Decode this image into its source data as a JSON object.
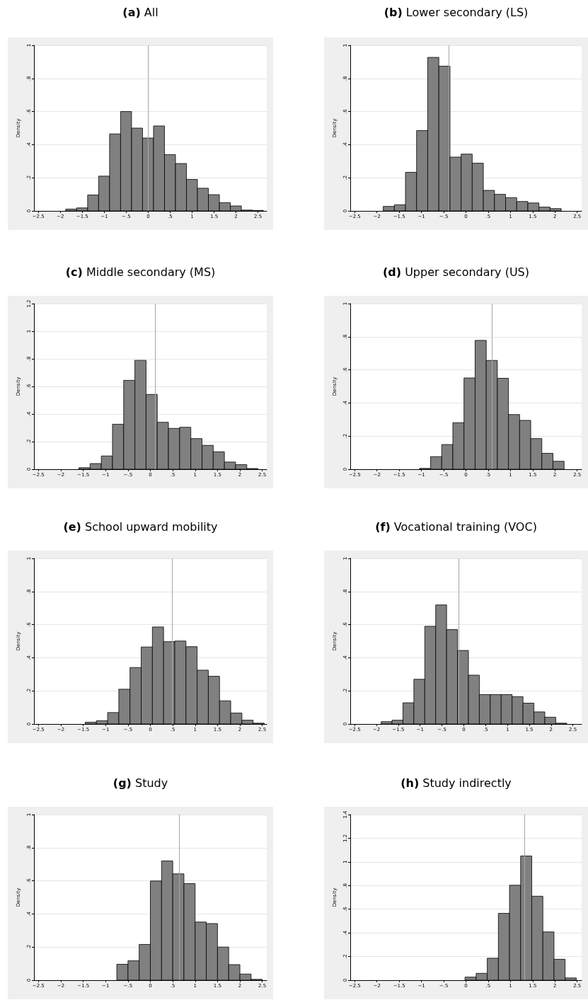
{
  "chart_data": [
    {
      "type": "histogram",
      "title": "(a) All",
      "ylabel": "Density",
      "color": "#808080",
      "grid": "y",
      "bins": [
        -1.878,
        -1.628,
        -1.378,
        -1.128,
        -0.878,
        -0.628,
        -0.378,
        -0.128,
        0.122,
        0.372,
        0.622,
        0.872,
        1.122,
        1.372,
        1.622,
        1.872,
        2.122,
        2.372,
        2.622
      ],
      "values": [
        0.011,
        0.018,
        0.096,
        0.21,
        0.465,
        0.6,
        0.5,
        0.44,
        0.513,
        0.34,
        0.286,
        0.19,
        0.137,
        0.098,
        0.05,
        0.03,
        0.005,
        0.003
      ],
      "ref_lines": [
        {
          "axis": "x",
          "value": 0,
          "color": "#a6a6a6"
        }
      ],
      "xlim": [
        -2.6,
        2.7
      ],
      "xticks": [
        {
          "value": -2.5,
          "label": "−2.5"
        },
        {
          "value": -2,
          "label": "−2"
        },
        {
          "value": -1.5,
          "label": "−1.5"
        },
        {
          "value": -1,
          "label": "−1"
        },
        {
          "value": -0.5,
          "label": "−.5"
        },
        0,
        {
          "value": 0.5,
          "label": ".5"
        },
        1,
        1.5,
        2,
        2.5
      ],
      "ylim": [
        0,
        1
      ],
      "yticks": [
        0,
        {
          "value": 0.2,
          "label": ".2"
        },
        {
          "value": 0.4,
          "label": ".4"
        },
        {
          "value": 0.6,
          "label": ".6"
        },
        {
          "value": 0.8,
          "label": ".8"
        },
        1
      ]
    },
    {
      "type": "histogram",
      "title": "(b) Lower secondary (LS)",
      "ylabel": "Density",
      "color": "#808080",
      "grid": "y",
      "bins": [
        -1.859,
        -1.609,
        -1.359,
        -1.109,
        -0.859,
        -0.609,
        -0.359,
        -0.109,
        0.141,
        0.391,
        0.641,
        0.891,
        1.141,
        1.391,
        1.641,
        1.891,
        2.141,
        2.391
      ],
      "values": [
        0.027,
        0.037,
        0.233,
        0.485,
        0.927,
        0.874,
        0.325,
        0.343,
        0.288,
        0.124,
        0.1,
        0.08,
        0.057,
        0.048,
        0.023,
        0.014,
        null
      ],
      "ref_lines": [
        {
          "axis": "x",
          "value": -0.378,
          "color": "#a6a6a6"
        }
      ],
      "xlim": [
        -2.6,
        2.6
      ],
      "xticks": [
        {
          "value": -2.5,
          "label": "−2.5"
        },
        {
          "value": -2,
          "label": "−2"
        },
        {
          "value": -1.5,
          "label": "−1.5"
        },
        {
          "value": -1,
          "label": "−1"
        },
        {
          "value": -0.5,
          "label": "−.5"
        },
        0,
        {
          "value": 0.5,
          "label": ".5"
        },
        1,
        1.5,
        2,
        2.5
      ],
      "ylim": [
        0,
        1
      ],
      "yticks": [
        0,
        {
          "value": 0.2,
          "label": ".2"
        },
        {
          "value": 0.4,
          "label": ".4"
        },
        {
          "value": 0.6,
          "label": ".6"
        },
        {
          "value": 0.8,
          "label": ".8"
        },
        1
      ]
    },
    {
      "type": "histogram",
      "title": "(c) Middle secondary (MS)",
      "ylabel": "Density",
      "color": "#808080",
      "grid": "y",
      "bins": [
        -1.596,
        -1.346,
        -1.096,
        -0.846,
        -0.596,
        -0.346,
        -0.096,
        0.154,
        0.404,
        0.654,
        0.904,
        1.154,
        1.404,
        1.654,
        1.904,
        2.154,
        2.404
      ],
      "values": [
        0.011,
        0.041,
        0.096,
        0.326,
        0.644,
        0.789,
        0.542,
        0.34,
        0.296,
        0.304,
        0.222,
        0.173,
        0.126,
        0.052,
        0.033,
        0.005
      ],
      "ref_lines": [
        {
          "axis": "x",
          "value": 0.112,
          "color": "#a6a6a6"
        }
      ],
      "xlim": [
        -2.6,
        2.6
      ],
      "xticks": [
        {
          "value": -2.5,
          "label": "−2.5"
        },
        {
          "value": -2,
          "label": "−2"
        },
        {
          "value": -1.5,
          "label": "−1.5"
        },
        {
          "value": -1,
          "label": "−1"
        },
        {
          "value": -0.5,
          "label": "−.5"
        },
        0,
        {
          "value": 0.5,
          "label": ".5"
        },
        1,
        1.5,
        2,
        2.5
      ],
      "ylim": [
        0,
        1.2
      ],
      "yticks": [
        0,
        {
          "value": 0.2,
          "label": ".2"
        },
        {
          "value": 0.4,
          "label": ".4"
        },
        {
          "value": 0.6,
          "label": ".6"
        },
        {
          "value": 0.8,
          "label": ".8"
        },
        1,
        1.2
      ]
    },
    {
      "type": "histogram",
      "title": "(d) Upper secondary (US)",
      "ylabel": "Density",
      "color": "#808080",
      "grid": "y",
      "bins": [
        -1.044,
        -0.794,
        -0.544,
        -0.294,
        -0.044,
        0.206,
        0.456,
        0.706,
        0.956,
        1.206,
        1.456,
        1.706,
        1.956,
        2.206,
        2.456
      ],
      "values": [
        0.005,
        0.076,
        0.149,
        0.281,
        0.551,
        0.778,
        0.657,
        0.549,
        0.33,
        0.295,
        0.185,
        0.096,
        0.048,
        null
      ],
      "ref_lines": [
        {
          "axis": "x",
          "value": 0.578,
          "color": "#a6a6a6"
        }
      ],
      "xlim": [
        -2.6,
        2.6
      ],
      "xticks": [
        {
          "value": -2.5,
          "label": "−2.5"
        },
        {
          "value": -2,
          "label": "−2"
        },
        {
          "value": -1.5,
          "label": "−1.5"
        },
        {
          "value": -1,
          "label": "−1"
        },
        {
          "value": -0.5,
          "label": "−.5"
        },
        0,
        {
          "value": 0.5,
          "label": ".5"
        },
        1,
        1.5,
        2,
        2.5
      ],
      "ylim": [
        0,
        1
      ],
      "yticks": [
        0,
        {
          "value": 0.2,
          "label": ".2"
        },
        {
          "value": 0.4,
          "label": ".4"
        },
        {
          "value": 0.6,
          "label": ".6"
        },
        {
          "value": 0.8,
          "label": ".8"
        },
        1
      ]
    },
    {
      "type": "histogram",
      "title": "(e) School upward mobility",
      "ylabel": "Density",
      "color": "#808080",
      "grid": "y",
      "bins": [
        -1.455,
        -1.205,
        -0.955,
        -0.705,
        -0.455,
        -0.205,
        0.045,
        0.295,
        0.545,
        0.795,
        1.045,
        1.295,
        1.545,
        1.795,
        2.045,
        2.295,
        2.545
      ],
      "values": [
        0.011,
        0.02,
        0.069,
        0.21,
        0.341,
        0.465,
        0.586,
        0.497,
        0.501,
        0.467,
        0.325,
        0.288,
        0.14,
        0.066,
        0.023,
        0.005
      ],
      "ref_lines": [
        {
          "axis": "x",
          "value": 0.49,
          "color": "#a6a6a6"
        }
      ],
      "xlim": [
        -2.6,
        2.6
      ],
      "xticks": [
        {
          "value": -2.5,
          "label": "−2.5"
        },
        {
          "value": -2,
          "label": "−2"
        },
        {
          "value": -1.5,
          "label": "−1.5"
        },
        {
          "value": -1,
          "label": "−1"
        },
        {
          "value": -0.5,
          "label": "−.5"
        },
        0,
        {
          "value": 0.5,
          "label": ".5"
        },
        1,
        1.5,
        2,
        2.5
      ],
      "ylim": [
        0,
        1
      ],
      "yticks": [
        0,
        {
          "value": 0.2,
          "label": ".2"
        },
        {
          "value": 0.4,
          "label": ".4"
        },
        {
          "value": 0.6,
          "label": ".6"
        },
        {
          "value": 0.8,
          "label": ".8"
        },
        1
      ]
    },
    {
      "type": "histogram",
      "title": "(f) Vocational training (VOC)",
      "ylabel": "Density",
      "color": "#808080",
      "grid": "y",
      "bins": [
        -1.893,
        -1.643,
        -1.393,
        -1.143,
        -0.893,
        -0.643,
        -0.393,
        -0.143,
        0.107,
        0.357,
        0.607,
        0.857,
        1.107,
        1.357,
        1.607,
        1.857,
        2.107,
        2.357,
        2.607
      ],
      "values": [
        0.014,
        0.023,
        0.128,
        0.27,
        0.59,
        0.719,
        0.57,
        0.444,
        0.295,
        0.178,
        0.178,
        0.178,
        0.165,
        0.126,
        0.073,
        0.041,
        0.005,
        null
      ],
      "ref_lines": [
        {
          "axis": "x",
          "value": -0.121,
          "color": "#a6a6a6"
        }
      ],
      "xlim": [
        -2.6,
        2.7
      ],
      "xticks": [
        {
          "value": -2.5,
          "label": "−2.5"
        },
        {
          "value": -2,
          "label": "−2"
        },
        {
          "value": -1.5,
          "label": "−1.5"
        },
        {
          "value": -1,
          "label": "−1"
        },
        {
          "value": -0.5,
          "label": "−.5"
        },
        0,
        {
          "value": 0.5,
          "label": ".5"
        },
        1,
        1.5,
        2,
        2.5
      ],
      "ylim": [
        0,
        1
      ],
      "yticks": [
        0,
        {
          "value": 0.2,
          "label": ".2"
        },
        {
          "value": 0.4,
          "label": ".4"
        },
        {
          "value": 0.6,
          "label": ".6"
        },
        {
          "value": 0.8,
          "label": ".8"
        },
        1
      ]
    },
    {
      "type": "histogram",
      "title": "(g) Study",
      "ylabel": "Density",
      "color": "#808080",
      "grid": "y",
      "bins": [
        -0.75,
        -0.5,
        -0.25,
        0,
        0.25,
        0.5,
        0.75,
        1,
        1.25,
        1.5,
        1.75,
        2,
        2.25,
        2.5
      ],
      "values": [
        0.096,
        0.117,
        0.216,
        0.599,
        0.72,
        0.642,
        0.583,
        0.351,
        0.342,
        0.2,
        0.094,
        0.037,
        0.005
      ],
      "ref_lines": [
        {
          "axis": "x",
          "value": 0.643,
          "color": "#a6a6a6"
        }
      ],
      "xlim": [
        -2.6,
        2.6
      ],
      "xticks": [
        {
          "value": -2.5,
          "label": "−2.5"
        },
        {
          "value": -2,
          "label": "−2"
        },
        {
          "value": -1.5,
          "label": "−1.5"
        },
        {
          "value": -1,
          "label": "−1"
        },
        {
          "value": -0.5,
          "label": "−.5"
        },
        0,
        {
          "value": 0.5,
          "label": ".5"
        },
        1,
        1.5,
        2,
        2.5
      ],
      "ylim": [
        0,
        1
      ],
      "yticks": [
        0,
        {
          "value": 0.2,
          "label": ".2"
        },
        {
          "value": 0.4,
          "label": ".4"
        },
        {
          "value": 0.6,
          "label": ".6"
        },
        {
          "value": 0.8,
          "label": ".8"
        },
        1
      ]
    },
    {
      "type": "histogram",
      "title": "(h) Study indirectly",
      "ylabel": "Density",
      "color": "#808080",
      "grid": "y",
      "bins": [
        -0.021,
        0.229,
        0.479,
        0.729,
        0.979,
        1.229,
        1.479,
        1.729,
        1.979,
        2.229,
        2.479
      ],
      "values": [
        0.026,
        0.058,
        0.186,
        0.565,
        0.803,
        1.05,
        0.71,
        0.408,
        0.177,
        0.019
      ],
      "ref_lines": [
        {
          "axis": "x",
          "value": 1.31,
          "color": "#a6a6a6"
        }
      ],
      "xlim": [
        -2.6,
        2.6
      ],
      "xticks": [
        {
          "value": -2.5,
          "label": "−2.5"
        },
        {
          "value": -2,
          "label": "−2"
        },
        {
          "value": -1.5,
          "label": "−1.5"
        },
        {
          "value": -1,
          "label": "−1"
        },
        {
          "value": -0.5,
          "label": "−.5"
        },
        0,
        {
          "value": 0.5,
          "label": ".5"
        },
        1,
        1.5,
        2,
        2.5
      ],
      "ylim": [
        0,
        1.4
      ],
      "yticks": [
        0,
        {
          "value": 0.2,
          "label": ".2"
        },
        {
          "value": 0.4,
          "label": ".4"
        },
        {
          "value": 0.6,
          "label": ".6"
        },
        {
          "value": 0.8,
          "label": ".8"
        },
        1,
        1.2,
        1.4
      ]
    }
  ]
}
